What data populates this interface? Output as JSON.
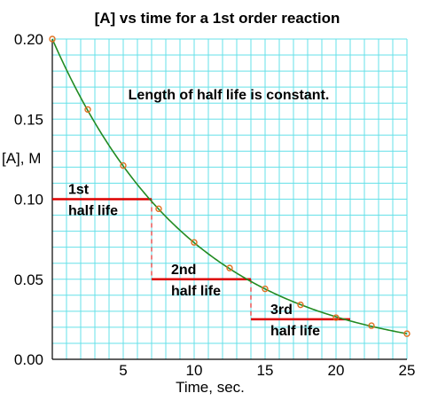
{
  "chart_data": {
    "type": "line",
    "title": "[A] vs time for a 1st order reaction",
    "xlabel": "Time, sec.",
    "ylabel": "[A], M",
    "xlim": [
      0,
      25
    ],
    "ylim": [
      0,
      0.2
    ],
    "grid": true,
    "x_ticks": [
      5,
      10,
      15,
      20,
      25
    ],
    "x_tick_labels": [
      "5",
      "10",
      "15",
      "20",
      "25"
    ],
    "y_ticks": [
      0,
      0.05,
      0.1,
      0.15,
      0.2
    ],
    "y_tick_labels": [
      "0.00",
      "0.05",
      "0.10",
      "0.15",
      "0.20"
    ],
    "series": [
      {
        "x": [
          0,
          2.5,
          5,
          7.5,
          10,
          12.5,
          15,
          17.5,
          20,
          22.5,
          25
        ],
        "y": [
          0.2,
          0.156,
          0.121,
          0.094,
          0.073,
          0.057,
          0.044,
          0.034,
          0.026,
          0.021,
          0.016
        ],
        "curve_color": "#228b22",
        "marker_color": "#e07020"
      }
    ],
    "annotations": {
      "note": "Length of half life is constant.",
      "half_lives": [
        {
          "line1": "1st",
          "line2": "half life",
          "x0": 0,
          "x1": 7,
          "y": 0.1
        },
        {
          "line1": "2nd",
          "line2": "half life",
          "x0": 7,
          "x1": 14,
          "y": 0.05
        },
        {
          "line1": "3rd",
          "line2": "half life",
          "x0": 14,
          "x1": 21,
          "y": 0.025
        }
      ],
      "half_life_color": "#dd0000"
    },
    "colors": {
      "grid": "#66e0e8",
      "axis": "#000000"
    }
  }
}
